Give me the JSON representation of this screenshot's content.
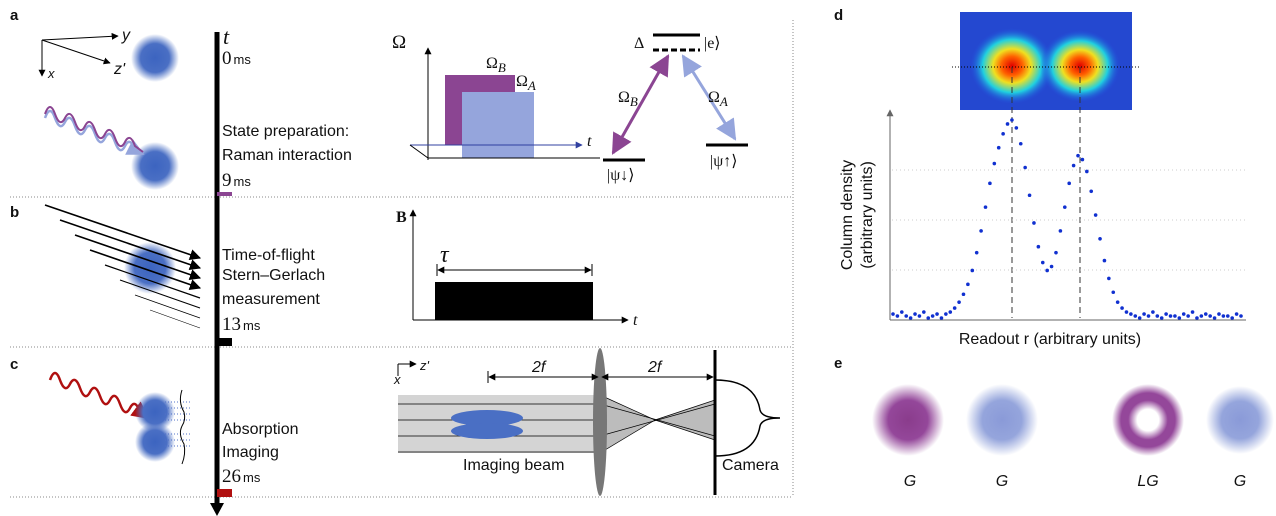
{
  "panels": {
    "a": {
      "label": "a",
      "axes": {
        "y": "y",
        "x": "x",
        "z": "z'"
      },
      "time_axis": "t",
      "start": {
        "value": "0",
        "unit": "ms"
      },
      "stage": [
        "State preparation:",
        "Raman interaction"
      ],
      "end": {
        "value": "9",
        "unit": "ms"
      },
      "pulse_plot": {
        "y_label": "Ω",
        "x_label": "t",
        "omega_b": {
          "symbol": "Ω",
          "sub": "B"
        },
        "omega_a": {
          "symbol": "Ω",
          "sub": "A"
        }
      },
      "levels": {
        "detuning": "Δ",
        "excited": "|e⟩",
        "coupling_b": {
          "symbol": "Ω",
          "sub": "B"
        },
        "coupling_a": {
          "symbol": "Ω",
          "sub": "A"
        },
        "down": "|ψ↓⟩",
        "up": "|ψ↑⟩"
      }
    },
    "b": {
      "label": "b",
      "stage": [
        "Time-of-flight",
        "Stern–Gerlach",
        "measurement"
      ],
      "end": {
        "value": "13",
        "unit": "ms"
      },
      "pulse_plot": {
        "y_label": "B",
        "duration": "τ",
        "x_label": "t"
      }
    },
    "c": {
      "label": "c",
      "stage": [
        "Absorption",
        "Imaging"
      ],
      "end": {
        "value": "26",
        "unit": "ms"
      },
      "optics": {
        "x": "x",
        "z": "z'",
        "distance_1": "2f",
        "distance_2": "2f",
        "beam": "Imaging beam",
        "camera": "Camera"
      }
    },
    "d": {
      "label": "d",
      "y_label": [
        "Column density",
        "(arbitrary units)"
      ],
      "x_label": "Readout r (arbitrary units)",
      "profile": [
        2,
        1,
        3,
        1,
        0,
        2,
        1,
        3,
        0,
        1,
        2,
        0,
        2,
        3,
        5,
        8,
        12,
        17,
        24,
        33,
        44,
        56,
        68,
        78,
        86,
        93,
        98,
        100,
        96,
        88,
        76,
        62,
        48,
        36,
        28,
        24,
        26,
        33,
        44,
        56,
        68,
        77,
        82,
        80,
        74,
        64,
        52,
        40,
        29,
        20,
        13,
        8,
        5,
        3,
        2,
        1,
        0,
        2,
        1,
        3,
        1,
        0,
        2,
        1,
        1,
        0,
        2,
        1,
        3,
        0,
        1,
        2,
        1,
        0,
        2,
        1,
        1,
        0,
        2,
        1
      ]
    },
    "e": {
      "label": "e",
      "modes": [
        "G",
        "G",
        "LG",
        "G"
      ]
    }
  }
}
